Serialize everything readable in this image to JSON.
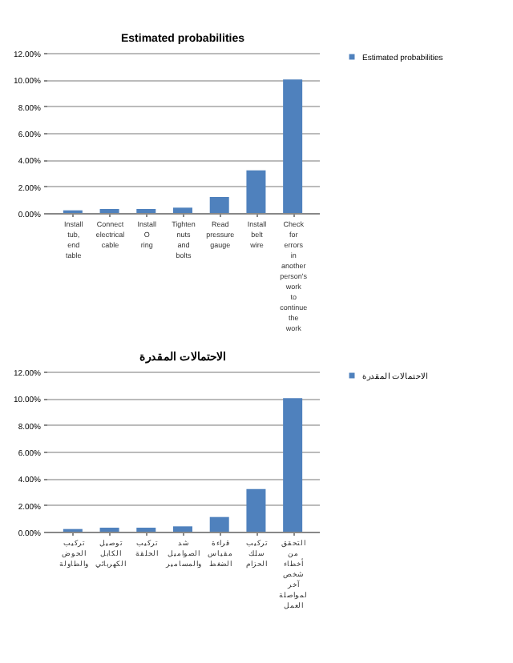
{
  "chart_data": [
    {
      "type": "bar",
      "title": "Estimated probabilities",
      "categories": [
        "Install tub, end table",
        "Connect electrical cable",
        "Install O ring",
        "Tighten nuts and bolts",
        "Read pressure gauge",
        "Install belt wire",
        "Check for errors in another person's work to continue the work"
      ],
      "series": [
        {
          "name": "Estimated probabilities",
          "color": "#4f81bd",
          "values": [
            0.2,
            0.3,
            0.3,
            0.4,
            1.2,
            3.2,
            10.0
          ]
        }
      ],
      "ylim": [
        0,
        12
      ],
      "yticks": [
        {
          "value": 0,
          "label": "0.00%"
        },
        {
          "value": 2,
          "label": "2.00%"
        },
        {
          "value": 4,
          "label": "4.00%"
        },
        {
          "value": 6,
          "label": "6.00%"
        },
        {
          "value": 8,
          "label": "8.00%"
        },
        {
          "value": 10,
          "label": "10.00%"
        },
        {
          "value": 12,
          "label": "12.00%"
        }
      ],
      "grid": "y",
      "legend": "right"
    },
    {
      "type": "bar",
      "title": "الاحتمالات المقدرة",
      "categories": [
        "تركيب الحوض والطاولة",
        "توصيل الكابل الكهربائي",
        "تركيب الحلقة",
        "شد الصواميل والمسامير",
        "قراءة مقياس الضغط",
        "تركيب سلك الحزام",
        "التحقق من أخطاء شخص آخر لمواصلة العمل"
      ],
      "series": [
        {
          "name": "الاحتمالات المقدرة",
          "color": "#4f81bd",
          "values": [
            0.2,
            0.3,
            0.3,
            0.4,
            1.1,
            3.2,
            10.0
          ]
        }
      ],
      "ylim": [
        0,
        12
      ],
      "yticks": [
        {
          "value": 0,
          "label": "0.00%"
        },
        {
          "value": 2,
          "label": "2.00%"
        },
        {
          "value": 4,
          "label": "4.00%"
        },
        {
          "value": 6,
          "label": "6.00%"
        },
        {
          "value": 8,
          "label": "8.00%"
        },
        {
          "value": 10,
          "label": "10.00%"
        },
        {
          "value": 12,
          "label": "12.00%"
        }
      ],
      "grid": "y",
      "legend": "right"
    }
  ]
}
